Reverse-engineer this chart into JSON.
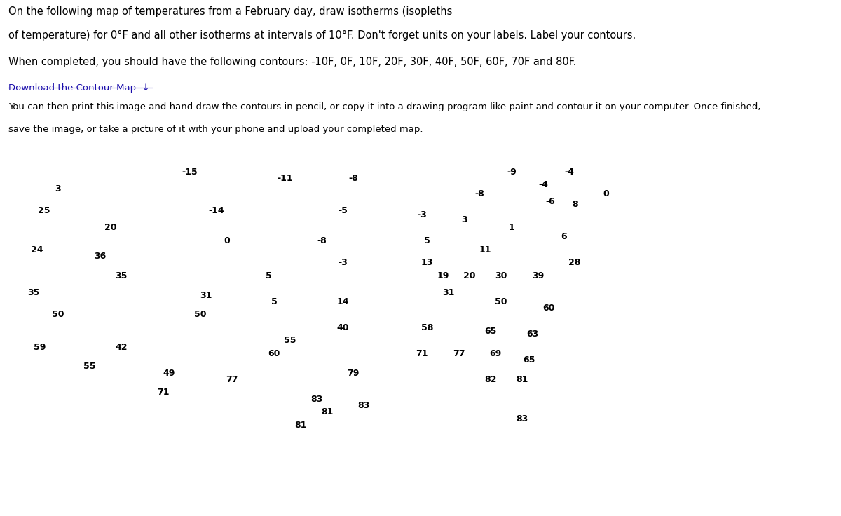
{
  "title_line1": "On the following map of temperatures from a February day, draw isotherms (isopleths",
  "title_line2": "of temperature) for 0°F and all other isotherms at intervals of 10°F. Don't forget units on your labels. Label your contours.",
  "subtitle": "When completed, you should have the following contours: -10F, 0F, 10F, 20F, 30F, 40F, 50F, 60F, 70F and 80F.",
  "link_text": "Download the Contour Map. ↓",
  "body_line1": "You can then print this image and hand draw the contours in pencil, or copy it into a drawing program like paint and contour it on your computer. Once finished,",
  "body_line2": "save the image, or take a picture of it with your phone and upload your completed map.",
  "temperature_points_latlon": [
    {
      "val": "-15",
      "lon": -110.0,
      "lat": 49.5
    },
    {
      "val": "3",
      "lon": -122.5,
      "lat": 48.2
    },
    {
      "val": "-11",
      "lon": -101.0,
      "lat": 49.0
    },
    {
      "val": "-8",
      "lon": -94.5,
      "lat": 49.0
    },
    {
      "val": "-8",
      "lon": -82.5,
      "lat": 47.8
    },
    {
      "val": "-9",
      "lon": -79.5,
      "lat": 49.5
    },
    {
      "val": "-4",
      "lon": -76.5,
      "lat": 48.5
    },
    {
      "val": "-4",
      "lon": -74.0,
      "lat": 49.5
    },
    {
      "val": "0",
      "lon": -70.5,
      "lat": 47.8
    },
    {
      "val": "25",
      "lon": -123.8,
      "lat": 46.5
    },
    {
      "val": "-14",
      "lon": -107.5,
      "lat": 46.5
    },
    {
      "val": "-5",
      "lon": -95.5,
      "lat": 46.5
    },
    {
      "val": "-3",
      "lon": -88.0,
      "lat": 46.2
    },
    {
      "val": "-6",
      "lon": -75.8,
      "lat": 47.2
    },
    {
      "val": "8",
      "lon": -73.5,
      "lat": 47.0
    },
    {
      "val": "20",
      "lon": -117.5,
      "lat": 45.2
    },
    {
      "val": "0",
      "lon": -106.5,
      "lat": 44.2
    },
    {
      "val": "-8",
      "lon": -97.5,
      "lat": 44.2
    },
    {
      "val": "5",
      "lon": -87.5,
      "lat": 44.2
    },
    {
      "val": "3",
      "lon": -84.0,
      "lat": 45.8
    },
    {
      "val": "1",
      "lon": -79.5,
      "lat": 45.2
    },
    {
      "val": "6",
      "lon": -74.5,
      "lat": 44.5
    },
    {
      "val": "24",
      "lon": -124.5,
      "lat": 43.5
    },
    {
      "val": "36",
      "lon": -118.5,
      "lat": 43.0
    },
    {
      "val": "-3",
      "lon": -95.5,
      "lat": 42.5
    },
    {
      "val": "13",
      "lon": -87.5,
      "lat": 42.5
    },
    {
      "val": "11",
      "lon": -82.0,
      "lat": 43.5
    },
    {
      "val": "28",
      "lon": -73.5,
      "lat": 42.5
    },
    {
      "val": "35",
      "lon": -116.5,
      "lat": 41.5
    },
    {
      "val": "5",
      "lon": -102.5,
      "lat": 41.5
    },
    {
      "val": "19",
      "lon": -86.0,
      "lat": 41.5
    },
    {
      "val": "20",
      "lon": -83.5,
      "lat": 41.5
    },
    {
      "val": "30",
      "lon": -80.5,
      "lat": 41.5
    },
    {
      "val": "39",
      "lon": -77.0,
      "lat": 41.5
    },
    {
      "val": "35",
      "lon": -124.8,
      "lat": 40.2
    },
    {
      "val": "31",
      "lon": -108.5,
      "lat": 40.0
    },
    {
      "val": "5",
      "lon": -102.0,
      "lat": 39.5
    },
    {
      "val": "14",
      "lon": -95.5,
      "lat": 39.5
    },
    {
      "val": "31",
      "lon": -85.5,
      "lat": 40.2
    },
    {
      "val": "50",
      "lon": -80.5,
      "lat": 39.5
    },
    {
      "val": "60",
      "lon": -76.0,
      "lat": 39.0
    },
    {
      "val": "50",
      "lon": -122.5,
      "lat": 38.5
    },
    {
      "val": "50",
      "lon": -109.0,
      "lat": 38.5
    },
    {
      "val": "40",
      "lon": -95.5,
      "lat": 37.5
    },
    {
      "val": "58",
      "lon": -87.5,
      "lat": 37.5
    },
    {
      "val": "65",
      "lon": -81.5,
      "lat": 37.2
    },
    {
      "val": "63",
      "lon": -77.5,
      "lat": 37.0
    },
    {
      "val": "59",
      "lon": -124.2,
      "lat": 36.0
    },
    {
      "val": "42",
      "lon": -116.5,
      "lat": 36.0
    },
    {
      "val": "55",
      "lon": -100.5,
      "lat": 36.5
    },
    {
      "val": "60",
      "lon": -102.0,
      "lat": 35.5
    },
    {
      "val": "71",
      "lon": -88.0,
      "lat": 35.5
    },
    {
      "val": "77",
      "lon": -84.5,
      "lat": 35.5
    },
    {
      "val": "69",
      "lon": -81.0,
      "lat": 35.5
    },
    {
      "val": "65",
      "lon": -77.8,
      "lat": 35.0
    },
    {
      "val": "55",
      "lon": -119.5,
      "lat": 34.5
    },
    {
      "val": "49",
      "lon": -112.0,
      "lat": 34.0
    },
    {
      "val": "77",
      "lon": -106.0,
      "lat": 33.5
    },
    {
      "val": "79",
      "lon": -94.5,
      "lat": 34.0
    },
    {
      "val": "82",
      "lon": -81.5,
      "lat": 33.5
    },
    {
      "val": "81",
      "lon": -78.5,
      "lat": 33.5
    },
    {
      "val": "71",
      "lon": -112.5,
      "lat": 32.5
    },
    {
      "val": "83",
      "lon": -98.0,
      "lat": 32.0
    },
    {
      "val": "83",
      "lon": -93.5,
      "lat": 31.5
    },
    {
      "val": "81",
      "lon": -97.0,
      "lat": 31.0
    },
    {
      "val": "83",
      "lon": -78.5,
      "lat": 30.5
    },
    {
      "val": "81",
      "lon": -99.5,
      "lat": 30.0
    }
  ],
  "font_size_title": 10.5,
  "font_size_body": 9.5,
  "font_size_link": 9.5,
  "label_fontsize": 9,
  "link_color": "#1a0dab",
  "text_color": "#000000"
}
